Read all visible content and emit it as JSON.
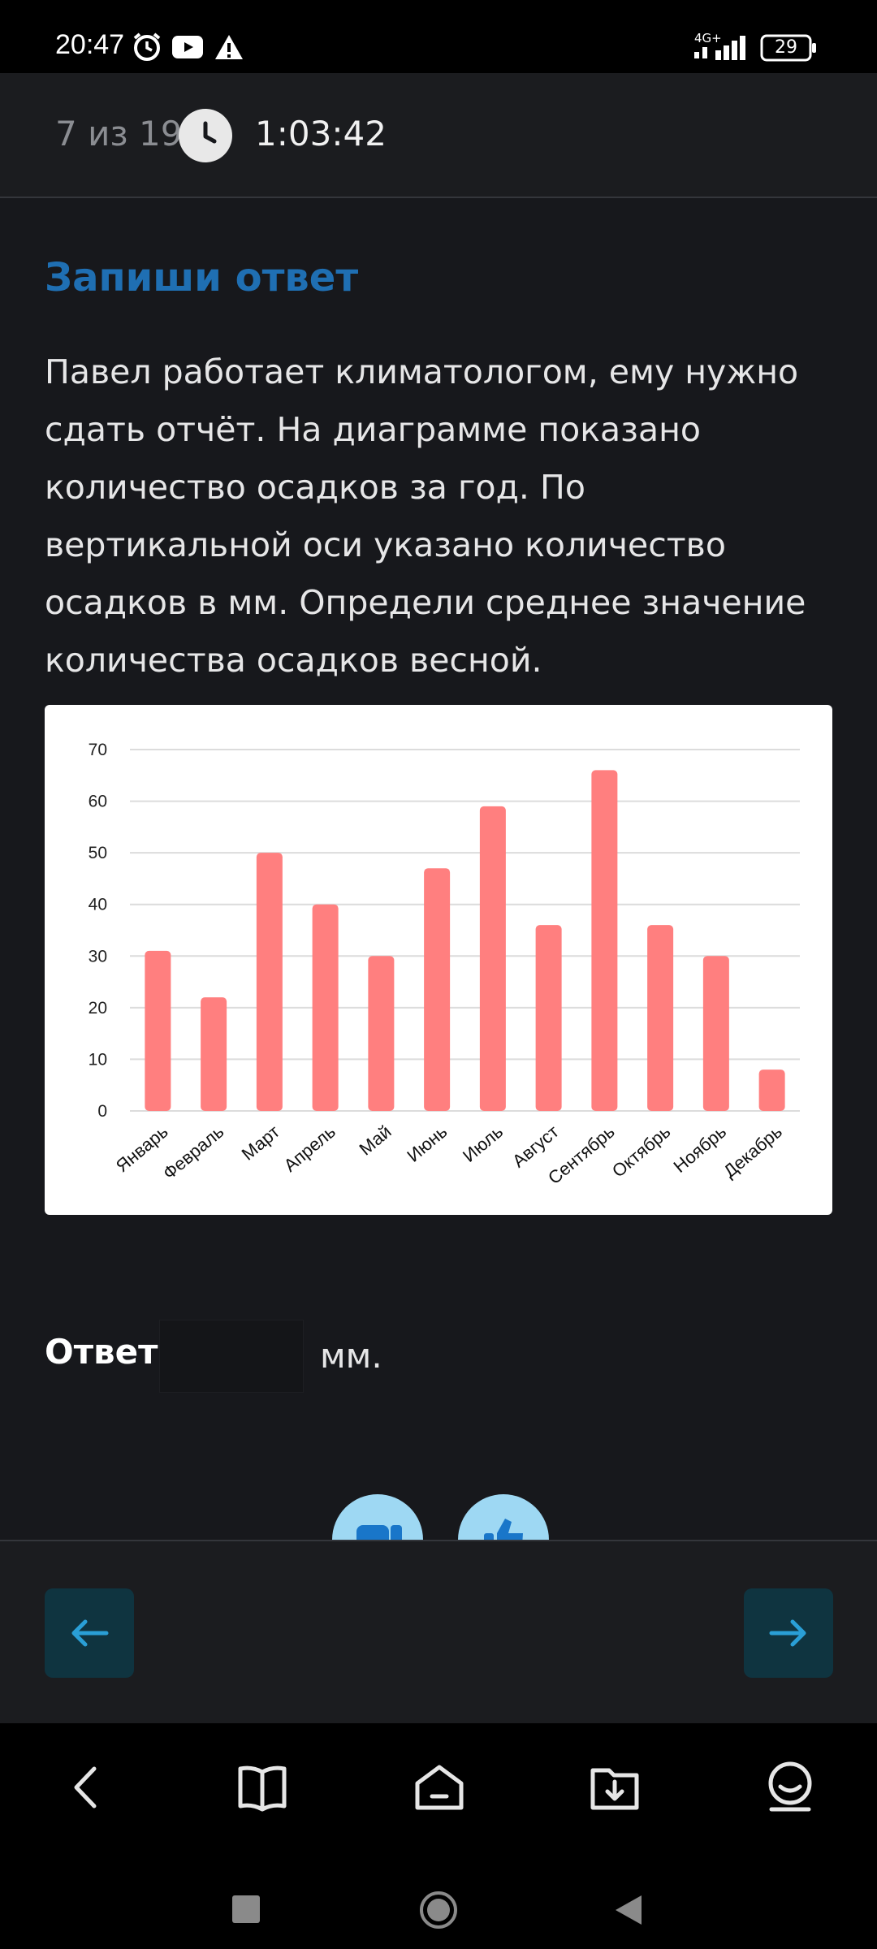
{
  "status_bar": {
    "time": "20:47",
    "network": "4G+",
    "battery": "29",
    "icons": [
      "alarm-icon",
      "youtube-icon",
      "warning-icon",
      "signal-icon",
      "battery-icon"
    ]
  },
  "header": {
    "counter": "7 из 19",
    "timer": "1:03:42"
  },
  "task": {
    "title": "Запиши ответ",
    "text": "Павел работает климатологом, ему нужно сдать отчёт. На диаграмме показано количество осадков за год. По вертикальной оси указано количество осадков в мм. Определи среднее значение количества осадков весной."
  },
  "chart_data": {
    "type": "bar",
    "categories": [
      "Январь",
      "Февраль",
      "Март",
      "Апрель",
      "Май",
      "Июнь",
      "Июль",
      "Август",
      "Сентябрь",
      "Октябрь",
      "Ноябрь",
      "Декабрь"
    ],
    "values": [
      31,
      22,
      50,
      40,
      30,
      47,
      59,
      36,
      66,
      36,
      30,
      8
    ],
    "yticks": [
      "0",
      "10",
      "20",
      "30",
      "40",
      "50",
      "60",
      "70"
    ],
    "ylim": [
      0,
      70
    ],
    "grid": true,
    "bar_color": "#ff7f7f"
  },
  "answer": {
    "label": "Ответ:",
    "value": "",
    "unit": "мм."
  },
  "reactions": [
    "dislike-icon",
    "like-icon"
  ],
  "navigation": {
    "prev_icon": "arrow-left-icon",
    "next_icon": "arrow-right-icon"
  },
  "app_nav": [
    "back-icon",
    "book-icon",
    "home-icon",
    "download-folder-icon",
    "profile-icon"
  ],
  "system_nav": [
    "recent-apps-icon",
    "home-circle-icon",
    "back-triangle-icon"
  ],
  "colors": {
    "background": "#17181c",
    "accent": "#1f6fb3",
    "nav_button": "#0f3440",
    "arrow": "#2a9fd6"
  }
}
